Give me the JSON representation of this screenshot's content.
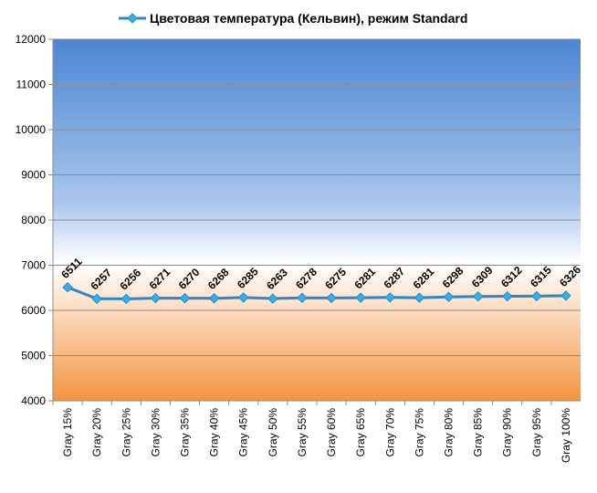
{
  "chart_data": {
    "type": "line",
    "categories": [
      "Gray 15%",
      "Gray 20%",
      "Gray 25%",
      "Gray 30%",
      "Gray 35%",
      "Gray 40%",
      "Gray 45%",
      "Gray 50%",
      "Gray 55%",
      "Gray 60%",
      "Gray 65%",
      "Gray 70%",
      "Gray 75%",
      "Gray 80%",
      "Gray 85%",
      "Gray 90%",
      "Gray 95%",
      "Gray 100%"
    ],
    "series": [
      {
        "name": "Цветовая температура (Кельвин), режим Standard",
        "color": "#2f86c8",
        "marker_color": "#29b5ea",
        "values": [
          6511,
          6257,
          6256,
          6271,
          6270,
          6268,
          6285,
          6263,
          6278,
          6275,
          6281,
          6287,
          6281,
          6298,
          6309,
          6312,
          6315,
          6326
        ]
      }
    ],
    "ylim": [
      4000,
      12000
    ],
    "yticks": [
      4000,
      5000,
      6000,
      7000,
      8000,
      9000,
      10000,
      11000,
      12000
    ],
    "grid": true,
    "legend": "top",
    "data_labels": true
  }
}
